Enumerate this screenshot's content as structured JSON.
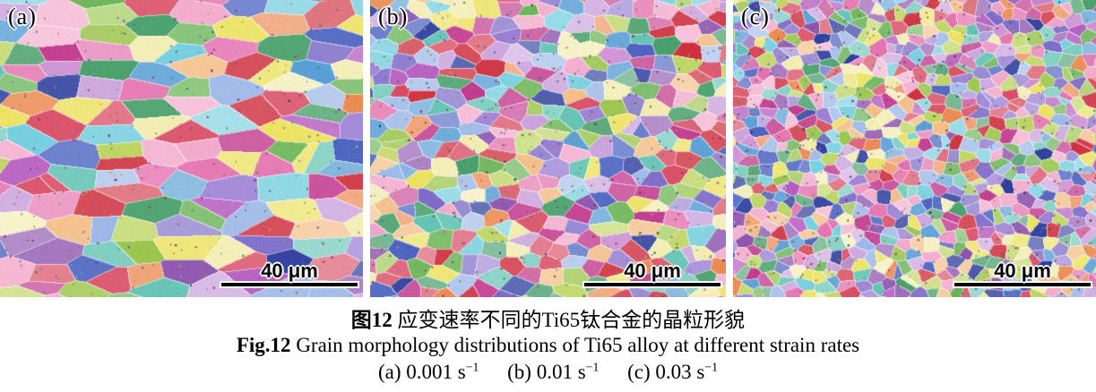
{
  "figure": {
    "panels": [
      {
        "id": "a",
        "label": "(a)",
        "scale_bar_label": "40 μm",
        "strain_rate": "0.001 s−1",
        "grain": {
          "seed": 101,
          "sx": 48,
          "sy": 22,
          "speckles": 300
        }
      },
      {
        "id": "b",
        "label": "(b)",
        "scale_bar_label": "40 μm",
        "strain_rate": "0.01 s−1",
        "grain": {
          "seed": 202,
          "sx": 24,
          "sy": 16,
          "speckles": 460
        }
      },
      {
        "id": "c",
        "label": "(c)",
        "scale_bar_label": "40 μm",
        "strain_rate": "0.03 s−1",
        "grain": {
          "seed": 303,
          "sx": 15,
          "sy": 12,
          "speckles": 650
        }
      }
    ],
    "palette": [
      "#c23a8e",
      "#e471ae",
      "#f3aacb",
      "#d94a62",
      "#cf3140",
      "#ec8a53",
      "#f4be86",
      "#ece25f",
      "#f2ecae",
      "#bcd45c",
      "#9cc64f",
      "#6ab456",
      "#49a06b",
      "#63c4b4",
      "#74cede",
      "#5a9fd6",
      "#9db8e8",
      "#4a62c0",
      "#2f3f9e",
      "#7e6cc8",
      "#9a7fd4",
      "#b75fc0",
      "#caa2dc",
      "#8d54ae"
    ],
    "boundary_color": "#ffffff",
    "scale_bar_color": "#000000",
    "caption": {
      "zh": {
        "bold": "图12",
        "rest": " 应变速率不同的Ti65钛合金的晶粒形貌"
      },
      "en": {
        "bold": "Fig.12",
        "rest": " Grain morphology distributions of Ti65 alloy at different strain rates"
      },
      "conditions": [
        {
          "base": "(a) 0.001 s",
          "sup": "−1"
        },
        {
          "base": "(b) 0.01 s",
          "sup": "−1"
        },
        {
          "base": "(c) 0.03 s",
          "sup": "−1"
        }
      ]
    }
  }
}
